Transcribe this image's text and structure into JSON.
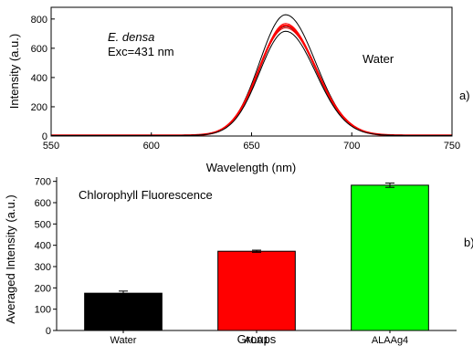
{
  "chart_data": [
    {
      "type": "line",
      "panel_label": "a)",
      "annotations": {
        "species": "E. densa",
        "excitation": "Exc=431 nm",
        "condition": "Water"
      },
      "xlabel": "Wavelength (nm)",
      "ylabel": "Intensity (a.u.)",
      "xlim": [
        550,
        750
      ],
      "ylim": [
        0,
        880
      ],
      "xticks": [
        550,
        600,
        650,
        700,
        750
      ],
      "yticks": [
        0,
        200,
        400,
        600,
        800
      ],
      "peak_center": 667,
      "series": [
        {
          "color": "#000000",
          "width": 1.0,
          "peak": 825,
          "sigma": 13
        },
        {
          "color": "#ff0000",
          "width": 1.0,
          "peak": 765,
          "sigma": 13
        },
        {
          "color": "#000000",
          "width": 1.0,
          "peak": 745,
          "sigma": 13
        },
        {
          "color": "#ff0000",
          "width": 1.0,
          "peak": 735,
          "sigma": 13.5
        },
        {
          "color": "#ff0000",
          "width": 2.2,
          "peak": 752,
          "sigma": 13.2
        },
        {
          "color": "#000000",
          "width": 1.0,
          "peak": 712,
          "sigma": 13
        }
      ]
    },
    {
      "type": "bar",
      "panel_label": "b)",
      "title": "Chlorophyll Fluorescence",
      "xlabel": "Groups",
      "ylabel": "Averaged Intensity (a.u.)",
      "ylim": [
        0,
        720
      ],
      "yticks": [
        0,
        100,
        200,
        300,
        400,
        500,
        600,
        700
      ],
      "categories": [
        "Water",
        "ALA1",
        "ALAAg4"
      ],
      "values": [
        175,
        372,
        682
      ],
      "errors": [
        10,
        5,
        10
      ],
      "colors": [
        "#000000",
        "#ff0000",
        "#00ff00"
      ]
    }
  ]
}
